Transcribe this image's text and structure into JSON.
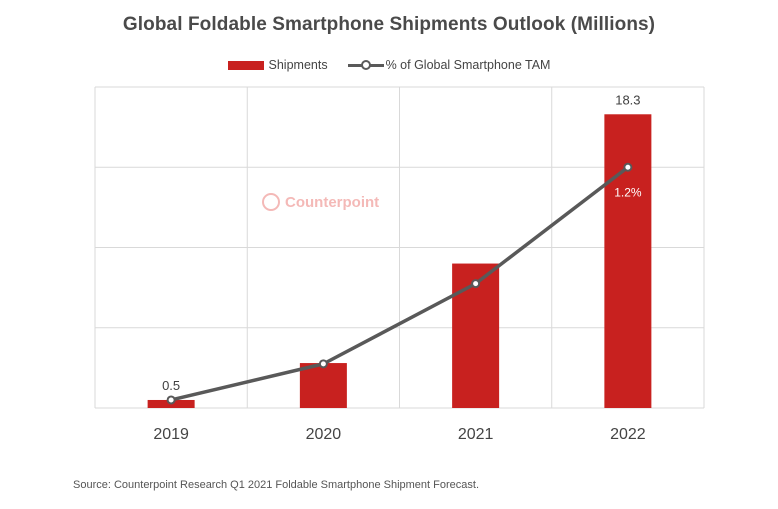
{
  "chart_data": {
    "type": "bar",
    "title": "Global Foldable Smartphone Shipments Outlook (Millions)",
    "categories": [
      "2019",
      "2020",
      "2021",
      "2022"
    ],
    "series": [
      {
        "name": "Shipments",
        "kind": "bar",
        "values": [
          0.5,
          2.8,
          9.0,
          18.3
        ],
        "data_labels": [
          "0.5",
          "",
          "",
          "18.3"
        ],
        "color": "#c8211f"
      },
      {
        "name": "% of Global Smartphone TAM",
        "kind": "line",
        "values": [
          0.04,
          0.22,
          0.62,
          1.2
        ],
        "data_labels": [
          "",
          "",
          "",
          "1.2%"
        ],
        "color": "#595959"
      }
    ],
    "ylim": [
      0,
      20
    ],
    "y2lim": [
      0,
      1.6
    ],
    "xlabel": "",
    "ylabel": "",
    "grid": true,
    "legend_position": "top-center"
  },
  "watermark": {
    "text": "Counterpoint"
  },
  "source": "Source: Counterpoint Research Q1 2021 Foldable Smartphone Shipment Forecast."
}
